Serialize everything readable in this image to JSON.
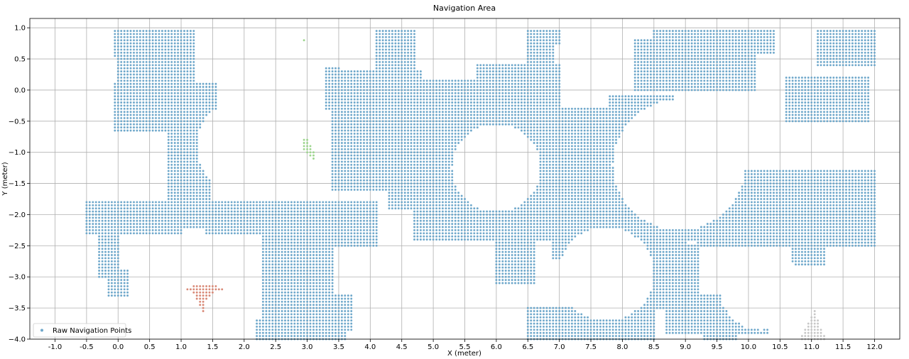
{
  "chart_data": {
    "type": "scatter",
    "title": "Navigation Area",
    "xlabel": "X (meter)",
    "ylabel": "Y (meter)",
    "xlim": [
      -1.4,
      12.4
    ],
    "ylim": [
      -4.0,
      1.15
    ],
    "xticks": [
      -1.0,
      -0.5,
      0.0,
      0.5,
      1.0,
      1.5,
      2.0,
      2.5,
      3.0,
      3.5,
      4.0,
      4.5,
      5.0,
      5.5,
      6.0,
      6.5,
      7.0,
      7.5,
      8.0,
      8.5,
      9.0,
      9.5,
      10.0,
      10.5,
      11.0,
      11.5,
      12.0
    ],
    "xtick_labels": [
      "-1.0",
      "-0.5",
      "0.0",
      "0.5",
      "1.0",
      "1.5",
      "2.0",
      "2.5",
      "3.0",
      "3.5",
      "4.0",
      "4.5",
      "5.0",
      "5.5",
      "6.0",
      "6.5",
      "7.0",
      "7.5",
      "8.0",
      "8.5",
      "9.0",
      "9.5",
      "10.0",
      "10.5",
      "11.0",
      "11.5",
      "12.0"
    ],
    "yticks": [
      1.0,
      0.5,
      0.0,
      -0.5,
      -1.0,
      -1.5,
      -2.0,
      -2.5,
      -3.0,
      -3.5,
      -4.0
    ],
    "ytick_labels": [
      "1.0",
      "0.5",
      "0.0",
      "−0.5",
      "−1.0",
      "−1.5",
      "−2.0",
      "−2.5",
      "−3.0",
      "−3.5",
      "−4.0"
    ],
    "grid": true,
    "legend_position": "lower-left",
    "grid_spacing": 0.1,
    "series": [
      {
        "name": "Raw Navigation Points",
        "color": "#6fa8cb",
        "legend": true,
        "region_rects": [
          [
            -0.05,
            0.55,
            0.45,
            0.95
          ],
          [
            0.0,
            0.1,
            1.2,
            0.95
          ],
          [
            -0.05,
            -0.65,
            1.55,
            0.1
          ],
          [
            0.5,
            -0.55,
            1.6,
            -0.3
          ],
          [
            0.8,
            -1.75,
            1.4,
            -0.6
          ],
          [
            1.0,
            -1.75,
            1.45,
            -0.6
          ],
          [
            -0.5,
            -2.3,
            1.0,
            -1.8
          ],
          [
            0.9,
            -2.2,
            3.5,
            -1.8
          ],
          [
            1.4,
            -2.3,
            2.4,
            -2.2
          ],
          [
            -0.3,
            -3.0,
            0.0,
            -2.3
          ],
          [
            -0.15,
            -3.3,
            0.15,
            -2.9
          ],
          [
            2.3,
            -4.0,
            3.4,
            -2.2
          ],
          [
            3.4,
            -3.85,
            3.7,
            -3.3
          ],
          [
            2.2,
            -4.0,
            3.6,
            -3.7
          ],
          [
            3.3,
            -2.5,
            4.1,
            -1.8
          ],
          [
            3.4,
            -1.6,
            4.8,
            0.3
          ],
          [
            3.3,
            -0.3,
            3.5,
            0.35
          ],
          [
            4.1,
            0.2,
            4.7,
            0.95
          ],
          [
            4.3,
            0.7,
            4.7,
            0.95
          ],
          [
            4.3,
            -1.9,
            4.7,
            -1.6
          ],
          [
            4.7,
            -2.4,
            8.2,
            -0.3
          ],
          [
            4.7,
            -1.6,
            5.7,
            0.15
          ],
          [
            5.7,
            -1.5,
            8.5,
            -0.3
          ],
          [
            5.7,
            -0.3,
            7.0,
            0.4
          ],
          [
            6.5,
            0.4,
            6.9,
            0.95
          ],
          [
            6.8,
            0.75,
            7.0,
            0.95
          ],
          [
            7.8,
            -1.7,
            8.8,
            -0.1
          ],
          [
            8.2,
            0.0,
            10.1,
            0.8
          ],
          [
            8.5,
            0.6,
            10.4,
            0.95
          ],
          [
            8.0,
            -2.4,
            9.2,
            -1.6
          ],
          [
            8.3,
            -2.6,
            9.0,
            -2.3
          ],
          [
            8.4,
            -3.5,
            9.2,
            -2.5
          ],
          [
            8.7,
            -3.9,
            9.5,
            -3.3
          ],
          [
            9.2,
            -2.5,
            12.0,
            -1.3
          ],
          [
            9.7,
            -2.4,
            10.7,
            -1.7
          ],
          [
            10.4,
            -0.6,
            12.0,
            -1.1
          ],
          [
            10.6,
            -0.5,
            11.9,
            0.2
          ],
          [
            11.1,
            0.4,
            12.0,
            0.95
          ],
          [
            11.5,
            0.6,
            11.9,
            0.95
          ],
          [
            6.0,
            -3.1,
            6.6,
            -2.3
          ],
          [
            6.9,
            -2.7,
            7.2,
            -2.2
          ],
          [
            6.5,
            -4.0,
            8.5,
            -3.5
          ],
          [
            7.5,
            -3.6,
            8.5,
            -2.8
          ],
          [
            8.3,
            -2.0,
            8.6,
            -1.6
          ],
          [
            8.9,
            -3.9,
            10.3,
            -3.3
          ],
          [
            9.3,
            -4.0,
            9.8,
            -3.7
          ],
          [
            10.7,
            -2.8,
            11.2,
            -2.3
          ]
        ],
        "hole_circles": [
          [
            2.0,
            -0.9,
            0.75
          ],
          [
            6.0,
            -1.25,
            0.7
          ],
          [
            8.9,
            -1.2,
            1.05
          ],
          [
            7.75,
            -2.95,
            0.75
          ],
          [
            10.2,
            -3.2,
            0.65
          ],
          [
            1.5,
            -3.1,
            0.65
          ]
        ]
      },
      {
        "name": "",
        "color": "#d98a78",
        "legend": false,
        "points": [
          [
            1.1,
            -3.2
          ],
          [
            1.15,
            -3.2
          ],
          [
            1.2,
            -3.2
          ],
          [
            1.25,
            -3.2
          ],
          [
            1.3,
            -3.2
          ],
          [
            1.35,
            -3.2
          ],
          [
            1.4,
            -3.2
          ],
          [
            1.45,
            -3.2
          ],
          [
            1.5,
            -3.2
          ],
          [
            1.55,
            -3.2
          ],
          [
            1.6,
            -3.2
          ],
          [
            1.65,
            -3.2
          ],
          [
            1.2,
            -3.15
          ],
          [
            1.25,
            -3.15
          ],
          [
            1.3,
            -3.15
          ],
          [
            1.35,
            -3.15
          ],
          [
            1.4,
            -3.15
          ],
          [
            1.45,
            -3.15
          ],
          [
            1.5,
            -3.15
          ],
          [
            1.55,
            -3.15
          ],
          [
            1.2,
            -3.25
          ],
          [
            1.25,
            -3.25
          ],
          [
            1.3,
            -3.25
          ],
          [
            1.35,
            -3.25
          ],
          [
            1.4,
            -3.25
          ],
          [
            1.45,
            -3.25
          ],
          [
            1.5,
            -3.25
          ],
          [
            1.25,
            -3.3
          ],
          [
            1.3,
            -3.3
          ],
          [
            1.35,
            -3.3
          ],
          [
            1.4,
            -3.3
          ],
          [
            1.45,
            -3.3
          ],
          [
            1.25,
            -3.35
          ],
          [
            1.3,
            -3.35
          ],
          [
            1.35,
            -3.35
          ],
          [
            1.4,
            -3.35
          ],
          [
            1.3,
            -3.4
          ],
          [
            1.35,
            -3.4
          ],
          [
            1.3,
            -3.45
          ],
          [
            1.35,
            -3.45
          ],
          [
            1.35,
            -3.5
          ],
          [
            1.35,
            -3.55
          ]
        ]
      },
      {
        "name": "",
        "color": "#9ed68f",
        "legend": false,
        "points": [
          [
            2.95,
            0.8
          ],
          [
            2.95,
            -0.8
          ],
          [
            3.0,
            -0.8
          ],
          [
            2.95,
            -0.85
          ],
          [
            3.0,
            -0.85
          ],
          [
            2.95,
            -0.9
          ],
          [
            3.0,
            -0.9
          ],
          [
            3.05,
            -0.9
          ],
          [
            2.95,
            -0.95
          ],
          [
            3.0,
            -0.95
          ],
          [
            3.05,
            -0.95
          ],
          [
            3.0,
            -1.0
          ],
          [
            3.05,
            -1.0
          ],
          [
            3.1,
            -1.0
          ],
          [
            3.05,
            -1.05
          ],
          [
            3.1,
            -1.05
          ],
          [
            3.1,
            -1.1
          ]
        ]
      },
      {
        "name": "",
        "color": "#c8c8c8",
        "legend": false,
        "points": [
          [
            11.05,
            -3.55
          ],
          [
            11.05,
            -3.6
          ],
          [
            11.0,
            -3.65
          ],
          [
            11.05,
            -3.65
          ],
          [
            11.0,
            -3.7
          ],
          [
            11.05,
            -3.7
          ],
          [
            11.1,
            -3.7
          ],
          [
            10.95,
            -3.75
          ],
          [
            11.0,
            -3.75
          ],
          [
            11.05,
            -3.75
          ],
          [
            11.1,
            -3.75
          ],
          [
            10.95,
            -3.8
          ],
          [
            11.0,
            -3.8
          ],
          [
            11.05,
            -3.8
          ],
          [
            11.1,
            -3.8
          ],
          [
            10.9,
            -3.85
          ],
          [
            10.95,
            -3.85
          ],
          [
            11.0,
            -3.85
          ],
          [
            11.05,
            -3.85
          ],
          [
            11.1,
            -3.85
          ],
          [
            11.15,
            -3.85
          ],
          [
            10.9,
            -3.9
          ],
          [
            10.95,
            -3.9
          ],
          [
            11.0,
            -3.9
          ],
          [
            11.05,
            -3.9
          ],
          [
            11.1,
            -3.9
          ],
          [
            11.15,
            -3.9
          ],
          [
            10.85,
            -3.95
          ],
          [
            10.9,
            -3.95
          ],
          [
            10.95,
            -3.95
          ],
          [
            11.0,
            -3.95
          ],
          [
            11.05,
            -3.95
          ],
          [
            11.1,
            -3.95
          ],
          [
            11.15,
            -3.95
          ],
          [
            11.2,
            -3.95
          ],
          [
            10.85,
            -4.0
          ],
          [
            10.9,
            -4.0
          ],
          [
            10.95,
            -4.0
          ],
          [
            11.0,
            -4.0
          ],
          [
            11.05,
            -4.0
          ],
          [
            11.1,
            -4.0
          ],
          [
            11.15,
            -4.0
          ],
          [
            11.2,
            -4.0
          ]
        ]
      }
    ]
  }
}
